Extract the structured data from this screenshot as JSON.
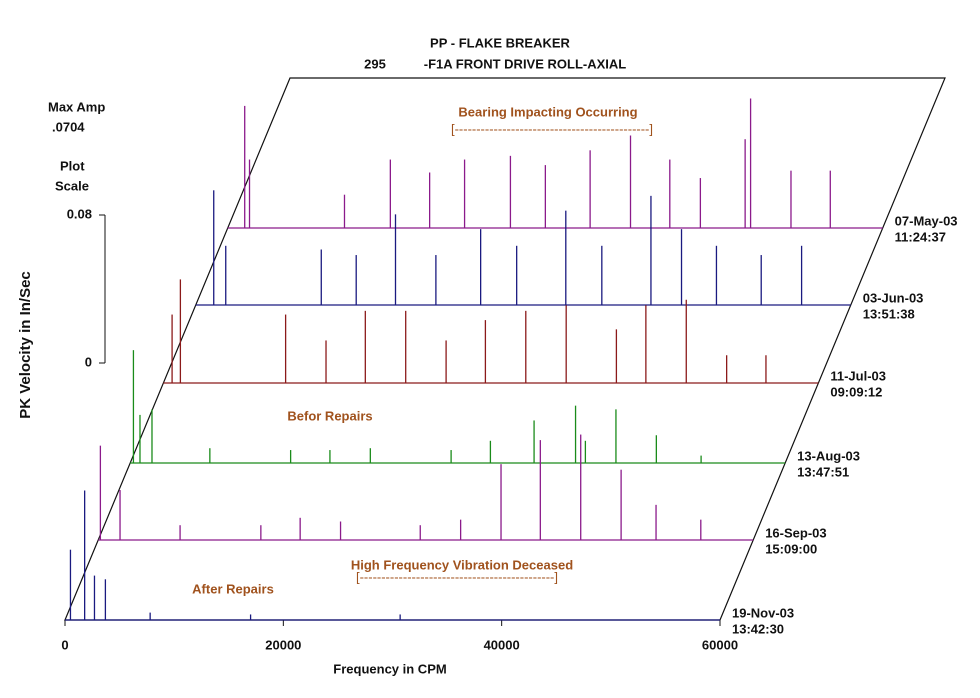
{
  "chart_data": {
    "type": "waterfall",
    "title_lines": [
      "PP    - FLAKE BREAKER",
      "295",
      "-F1A   FRONT DRIVE ROLL-AXIAL"
    ],
    "max_amp_label": "Max Amp",
    "max_amp": ".0704",
    "scale_label": [
      "Plot",
      "Scale"
    ],
    "y_label": "PK Velocity in In/Sec",
    "x_label": "Frequency in CPM",
    "xlim": [
      0,
      60000
    ],
    "xticks": [
      0,
      20000,
      40000,
      60000
    ],
    "ylim": [
      0,
      0.08
    ],
    "yticks": [
      0,
      0.08
    ],
    "annotations": [
      "Bearing Impacting Occurring",
      "[---------------------------------------------]",
      "Befor Repairs",
      "High Frequency Vibration Deceased",
      "[---------------------------------------------]",
      "After Repairs"
    ],
    "series": [
      {
        "name": "07-May-03",
        "time": "11:24:37",
        "color": "#8b1a8b",
        "x": [
          1560,
          2000,
          10700,
          14900,
          18500,
          21700,
          25900,
          29100,
          33200,
          36900,
          40500,
          43300,
          47400,
          47900,
          51600,
          55200
        ],
        "values": [
          0.066,
          0.037,
          0.018,
          0.037,
          0.03,
          0.037,
          0.039,
          0.034,
          0.042,
          0.05,
          0.037,
          0.027,
          0.048,
          0.07,
          0.031,
          0.031
        ]
      },
      {
        "name": "03-Jun-03",
        "time": "13:51:38",
        "color": "#1a1a80",
        "x": [
          1650,
          2750,
          11500,
          14700,
          18300,
          22000,
          26100,
          29400,
          33900,
          37200,
          41700,
          44500,
          47700,
          51800,
          55500
        ],
        "values": [
          0.062,
          0.032,
          0.03,
          0.027,
          0.049,
          0.027,
          0.041,
          0.032,
          0.051,
          0.032,
          0.059,
          0.041,
          0.032,
          0.027,
          0.032
        ]
      },
      {
        "name": "11-Jul-03",
        "time": "09:09:12",
        "color": "#8b1a1a",
        "x": [
          800,
          1560,
          11200,
          14900,
          18500,
          22200,
          25900,
          29500,
          33200,
          36900,
          41500,
          44200,
          47900,
          51600,
          55200
        ],
        "values": [
          0.037,
          0.056,
          0.037,
          0.023,
          0.039,
          0.039,
          0.023,
          0.034,
          0.039,
          0.042,
          0.029,
          0.042,
          0.045,
          0.015,
          0.015
        ]
      },
      {
        "name": "13-Aug-03",
        "time": "13:47:51",
        "color": "#1a8b1a",
        "x": [
          300,
          900,
          2000,
          7300,
          14700,
          18300,
          22000,
          29400,
          33000,
          37000,
          40800,
          41700,
          44500,
          48200,
          52300
        ],
        "values": [
          0.061,
          0.026,
          0.029,
          0.008,
          0.007,
          0.007,
          0.008,
          0.007,
          0.012,
          0.023,
          0.031,
          0.012,
          0.029,
          0.015,
          0.004
        ]
      },
      {
        "name": "16-Sep-03",
        "time": "15:09:00",
        "color": "#8b1a8b",
        "x": [
          200,
          2000,
          7500,
          14900,
          18500,
          22200,
          29500,
          33200,
          36900,
          40500,
          44200,
          47900,
          51100,
          55200
        ],
        "values": [
          0.051,
          0.027,
          0.008,
          0.008,
          0.012,
          0.01,
          0.008,
          0.011,
          0.041,
          0.054,
          0.057,
          0.038,
          0.019,
          0.011
        ]
      },
      {
        "name": "19-Nov-03",
        "time": "13:42:30",
        "color": "#1a1a80",
        "x": [
          500,
          1800,
          2700,
          3700,
          7800,
          17000,
          30700
        ],
        "values": [
          0.038,
          0.07,
          0.024,
          0.022,
          0.004,
          0.003,
          0.003
        ]
      }
    ]
  }
}
